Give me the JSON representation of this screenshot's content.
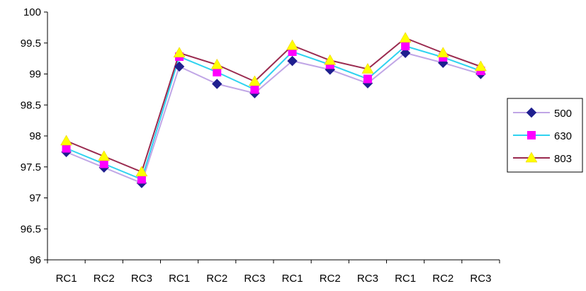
{
  "chart_data": {
    "type": "line",
    "categories": [
      "RC1",
      "RC2",
      "RC3",
      "RC1",
      "RC2",
      "RC3",
      "RC1",
      "RC2",
      "RC3",
      "RC1",
      "RC2",
      "RC3"
    ],
    "ylim": [
      96,
      100
    ],
    "yticks": [
      "96",
      "96.5",
      "97",
      "97.5",
      "98",
      "98.5",
      "99",
      "99.5",
      "100"
    ],
    "grid": false,
    "legend": "right",
    "series": [
      {
        "name": "500",
        "line_color": "#c0a6e6",
        "marker": "diamond",
        "marker_color": "#1f1f8f",
        "values": [
          97.74,
          97.49,
          97.24,
          99.12,
          98.84,
          98.69,
          99.21,
          99.07,
          98.85,
          99.34,
          99.18,
          99.0
        ]
      },
      {
        "name": "630",
        "line_color": "#2fd3f0",
        "marker": "square",
        "marker_color": "#ff00ff",
        "values": [
          97.8,
          97.55,
          97.3,
          99.28,
          99.03,
          98.75,
          99.36,
          99.15,
          98.92,
          99.45,
          99.27,
          99.05
        ]
      },
      {
        "name": "803",
        "line_color": "#9a2a4f",
        "marker": "triangle",
        "marker_color": "#ffff00",
        "values": [
          97.92,
          97.67,
          97.42,
          99.34,
          99.15,
          98.88,
          99.46,
          99.22,
          99.08,
          99.58,
          99.34,
          99.12
        ]
      }
    ]
  }
}
